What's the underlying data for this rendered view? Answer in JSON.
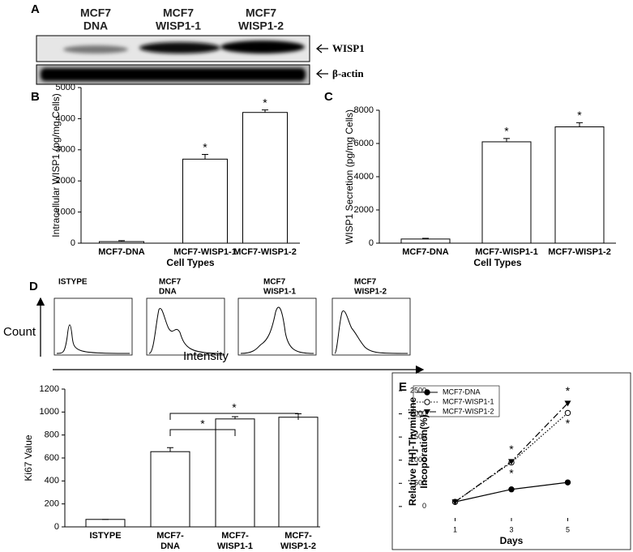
{
  "figure": {
    "panel_labels": [
      "A",
      "B",
      "C",
      "D",
      "E"
    ],
    "blot": {
      "lanes": [
        [
          "MCF7",
          "DNA"
        ],
        [
          "MCF7",
          "WISP1-1"
        ],
        [
          "MCF7",
          "WISP1-2"
        ]
      ],
      "bands": [
        "WISP1",
        "β-actin"
      ]
    },
    "flow": {
      "panels": [
        [
          "ISTYPE"
        ],
        [
          "MCF7",
          "DNA"
        ],
        [
          "MCF7",
          "WISP1-1"
        ],
        [
          "MCF7",
          "WISP1-2"
        ]
      ],
      "ylabel": "Count",
      "xlabel": "Intensity"
    }
  },
  "chart_data": [
    {
      "type": "bar",
      "ylabel": "Intracellular WISP1 (pg/mg Cells)",
      "xlabel": "Cell Types",
      "categories": [
        [
          "MCF7-DNA"
        ],
        [
          "MCF7-WISP1-1"
        ],
        [
          "MCF7-WISP1-2"
        ]
      ],
      "values": [
        50,
        2700,
        4200
      ],
      "errors": [
        30,
        150,
        80
      ],
      "significance": [
        null,
        "*",
        "*"
      ],
      "ylim": [
        0,
        5000
      ],
      "yticks": [
        0,
        1000,
        2000,
        3000,
        4000,
        5000
      ]
    },
    {
      "type": "bar",
      "ylabel": "WISP1 Secretion (pg/mg Cells)",
      "xlabel": "Cell Types",
      "categories": [
        [
          "MCF7-DNA"
        ],
        [
          "MCF7-WISP1-1"
        ],
        [
          "MCF7-WISP1-2"
        ]
      ],
      "values": [
        250,
        6100,
        7000
      ],
      "errors": [
        40,
        200,
        250
      ],
      "significance": [
        null,
        "*",
        "*"
      ],
      "ylim": [
        0,
        8000
      ],
      "yticks": [
        0,
        2000,
        4000,
        6000,
        8000
      ]
    },
    {
      "type": "bar",
      "ylabel": "Ki67 Value",
      "categories": [
        [
          "ISTYPE"
        ],
        [
          "MCF7-",
          "DNA"
        ],
        [
          "MCF7-",
          "WISP1-1"
        ],
        [
          "MCF7-",
          "WISP1-2"
        ]
      ],
      "values": [
        65,
        655,
        940,
        955
      ],
      "errors": [
        0,
        35,
        20,
        30
      ],
      "comparisons": [
        {
          "pair": [
            1,
            2
          ],
          "label": "*"
        },
        {
          "pair": [
            1,
            3
          ],
          "label": "*"
        }
      ],
      "ylim": [
        0,
        1200
      ],
      "yticks": [
        0,
        200,
        400,
        600,
        800,
        1000,
        1200
      ]
    },
    {
      "type": "line",
      "xlabel": "Days",
      "ylabel": [
        "Relative [³H]-Thymidine",
        "Incoporation(%)"
      ],
      "x": [
        1,
        3,
        5
      ],
      "xlim": [
        -1,
        7
      ],
      "xticks": [
        1,
        3,
        5
      ],
      "ylim": [
        -300,
        2500
      ],
      "yticks": [
        0,
        500,
        1000,
        1500,
        2000,
        2500
      ],
      "series": [
        {
          "name": "MCF7-DNA",
          "color": "#000000",
          "dash": "solid",
          "marker": "filled-circle",
          "values": [
            100,
            370,
            520
          ]
        },
        {
          "name": "MCF7-WISP1-1",
          "color": "#000000",
          "dash": "dotted",
          "marker": "open-circle",
          "values": [
            100,
            950,
            2020
          ],
          "significance": [
            null,
            "*",
            "*"
          ]
        },
        {
          "name": "MCF7-WISP1-2",
          "color": "#000000",
          "dash": "dash-dot",
          "marker": "triangle-down",
          "values": [
            100,
            970,
            2230
          ],
          "significance": [
            null,
            "*",
            "*"
          ]
        }
      ]
    }
  ]
}
